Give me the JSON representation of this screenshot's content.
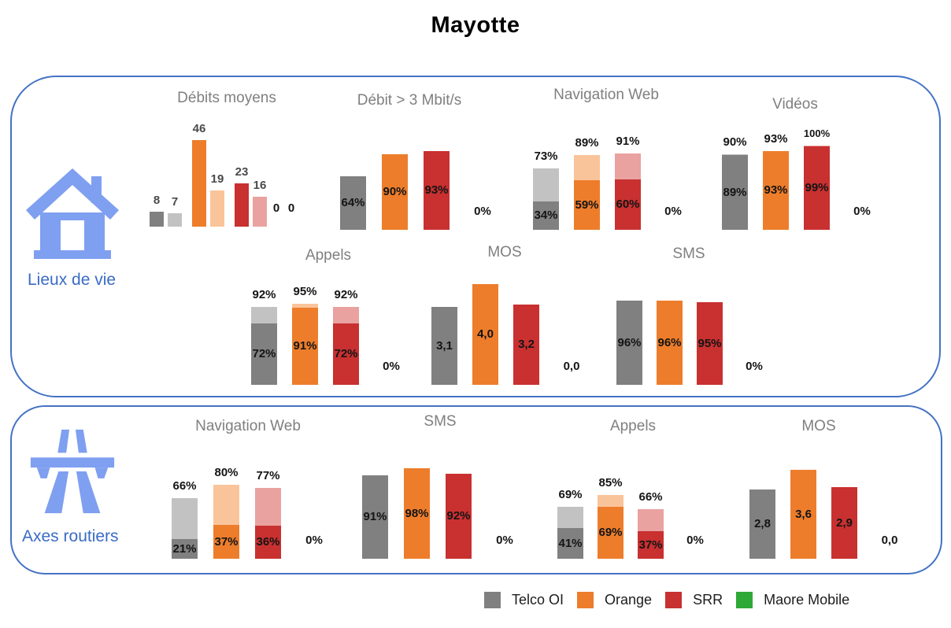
{
  "title": "Mayotte",
  "colors": {
    "panel_border": "#4472C4",
    "icon_blue": "#7F9FF0",
    "section_label": "#3A6BC4",
    "chart_title": "#7F7F7F",
    "value_label": "#141414",
    "operators": {
      "Telco OI": {
        "solid": "#808080",
        "light": "#C2C2C2"
      },
      "Orange": {
        "solid": "#ED7D2B",
        "light": "#FAC49A"
      },
      "SRR": {
        "solid": "#C93030",
        "light": "#E9A2A0"
      },
      "Maore Mobile": {
        "solid": "#2EA836",
        "light": "#9FD89F"
      }
    }
  },
  "sections": [
    {
      "id": "lieux-de-vie",
      "label": "Lieux de vie",
      "icon": "house-icon"
    },
    {
      "id": "axes-routiers",
      "label": "Axes routiers",
      "icon": "highway-icon"
    }
  ],
  "legend": [
    {
      "label": "Telco OI",
      "color": "#808080"
    },
    {
      "label": "Orange",
      "color": "#ED7D2B"
    },
    {
      "label": "SRR",
      "color": "#C93030"
    },
    {
      "label": "Maore Mobile",
      "color": "#2EA836"
    }
  ],
  "chart_data": [
    {
      "id": "lv-debits",
      "section": "Lieux de vie",
      "title": "Débits moyens",
      "type": "grouped-bar",
      "unit": "Mbit/s",
      "bars": [
        {
          "operator": "Telco OI",
          "shade": "solid",
          "value": 8,
          "label": "8"
        },
        {
          "operator": "Telco OI",
          "shade": "light",
          "value": 7,
          "label": "7"
        },
        {
          "operator": "Orange",
          "shade": "solid",
          "value": 46,
          "label": "46"
        },
        {
          "operator": "Orange",
          "shade": "light",
          "value": 19,
          "label": "19"
        },
        {
          "operator": "SRR",
          "shade": "solid",
          "value": 23,
          "label": "23"
        },
        {
          "operator": "SRR",
          "shade": "light",
          "value": 16,
          "label": "16"
        }
      ],
      "no_data": {
        "operator": "Maore Mobile",
        "labels": [
          "0",
          "0"
        ]
      }
    },
    {
      "id": "lv-debit3",
      "section": "Lieux de vie",
      "title": "Débit > 3 Mbit/s",
      "type": "bar",
      "unit": "%",
      "bars": [
        {
          "operator": "Telco OI",
          "value": 64,
          "label": "64%"
        },
        {
          "operator": "Orange",
          "value": 90,
          "label": "90%"
        },
        {
          "operator": "SRR",
          "value": 93,
          "label": "93%"
        }
      ],
      "no_data": {
        "operator": "Maore Mobile",
        "labels": [
          "0%"
        ]
      }
    },
    {
      "id": "lv-navweb",
      "section": "Lieux de vie",
      "title": "Navigation Web",
      "type": "stacked-bar",
      "unit": "%",
      "bars": [
        {
          "operator": "Telco OI",
          "total": 73,
          "solid": 34,
          "total_label": "73%",
          "solid_label": "34%"
        },
        {
          "operator": "Orange",
          "total": 89,
          "solid": 59,
          "total_label": "89%",
          "solid_label": "59%"
        },
        {
          "operator": "SRR",
          "total": 91,
          "solid": 60,
          "total_label": "91%",
          "solid_label": "60%"
        }
      ],
      "no_data": {
        "operator": "Maore Mobile",
        "labels": [
          "0%"
        ]
      }
    },
    {
      "id": "lv-videos",
      "section": "Lieux de vie",
      "title": "Vidéos",
      "type": "stacked-bar",
      "unit": "%",
      "bars": [
        {
          "operator": "Telco OI",
          "total": 90,
          "solid": 89,
          "total_label": "90%",
          "solid_label": "89%"
        },
        {
          "operator": "Orange",
          "total": 93,
          "solid": 93,
          "total_label": "93%",
          "solid_label": "93%"
        },
        {
          "operator": "SRR",
          "total": 100,
          "solid": 99,
          "total_label": "100%",
          "solid_label": "99%",
          "small_top": true
        }
      ],
      "no_data": {
        "operator": "Maore Mobile",
        "labels": [
          "0%"
        ]
      }
    },
    {
      "id": "lv-appels",
      "section": "Lieux de vie",
      "title": "Appels",
      "type": "stacked-bar",
      "unit": "%",
      "bars": [
        {
          "operator": "Telco OI",
          "total": 92,
          "solid": 72,
          "total_label": "92%",
          "solid_label": "72%"
        },
        {
          "operator": "Orange",
          "total": 95,
          "solid": 91,
          "total_label": "95%",
          "solid_label": "91%"
        },
        {
          "operator": "SRR",
          "total": 92,
          "solid": 72,
          "total_label": "92%",
          "solid_label": "72%"
        }
      ],
      "no_data": {
        "operator": "Maore Mobile",
        "labels": [
          "0%"
        ]
      }
    },
    {
      "id": "lv-mos",
      "section": "Lieux de vie",
      "title": "MOS",
      "type": "bar",
      "unit": "score",
      "bars": [
        {
          "operator": "Telco OI",
          "value": 3.1,
          "label": "3,1"
        },
        {
          "operator": "Orange",
          "value": 4.0,
          "label": "4,0"
        },
        {
          "operator": "SRR",
          "value": 3.2,
          "label": "3,2"
        }
      ],
      "no_data": {
        "operator": "Maore Mobile",
        "labels": [
          "0,0"
        ]
      }
    },
    {
      "id": "lv-sms",
      "section": "Lieux de vie",
      "title": "SMS",
      "type": "bar",
      "unit": "%",
      "bars": [
        {
          "operator": "Telco OI",
          "value": 96,
          "label": "96%"
        },
        {
          "operator": "Orange",
          "value": 96,
          "label": "96%"
        },
        {
          "operator": "SRR",
          "value": 95,
          "label": "95%"
        }
      ],
      "no_data": {
        "operator": "Maore Mobile",
        "labels": [
          "0%"
        ]
      }
    },
    {
      "id": "ar-navweb",
      "section": "Axes routiers",
      "title": "Navigation Web",
      "type": "stacked-bar",
      "unit": "%",
      "bars": [
        {
          "operator": "Telco OI",
          "total": 66,
          "solid": 21,
          "total_label": "66%",
          "solid_label": "21%"
        },
        {
          "operator": "Orange",
          "total": 80,
          "solid": 37,
          "total_label": "80%",
          "solid_label": "37%"
        },
        {
          "operator": "SRR",
          "total": 77,
          "solid": 36,
          "total_label": "77%",
          "solid_label": "36%"
        }
      ],
      "no_data": {
        "operator": "Maore Mobile",
        "labels": [
          "0%"
        ]
      }
    },
    {
      "id": "ar-sms",
      "section": "Axes routiers",
      "title": "SMS",
      "type": "bar",
      "unit": "%",
      "bars": [
        {
          "operator": "Telco OI",
          "value": 91,
          "label": "91%"
        },
        {
          "operator": "Orange",
          "value": 98,
          "label": "98%"
        },
        {
          "operator": "SRR",
          "value": 92,
          "label": "92%"
        }
      ],
      "no_data": {
        "operator": "Maore Mobile",
        "labels": [
          "0%"
        ]
      }
    },
    {
      "id": "ar-appels",
      "section": "Axes routiers",
      "title": "Appels",
      "type": "stacked-bar",
      "unit": "%",
      "bars": [
        {
          "operator": "Telco OI",
          "total": 69,
          "solid": 41,
          "total_label": "69%",
          "solid_label": "41%"
        },
        {
          "operator": "Orange",
          "total": 85,
          "solid": 69,
          "total_label": "85%",
          "solid_label": "69%"
        },
        {
          "operator": "SRR",
          "total": 66,
          "solid": 37,
          "total_label": "66%",
          "solid_label": "37%"
        }
      ],
      "no_data": {
        "operator": "Maore Mobile",
        "labels": [
          "0%"
        ]
      }
    },
    {
      "id": "ar-mos",
      "section": "Axes routiers",
      "title": "MOS",
      "type": "bar",
      "unit": "score",
      "bars": [
        {
          "operator": "Telco OI",
          "value": 2.8,
          "label": "2,8"
        },
        {
          "operator": "Orange",
          "value": 3.6,
          "label": "3,6"
        },
        {
          "operator": "SRR",
          "value": 2.9,
          "label": "2,9"
        }
      ],
      "no_data": {
        "operator": "Maore Mobile",
        "labels": [
          "0,0"
        ]
      }
    }
  ]
}
